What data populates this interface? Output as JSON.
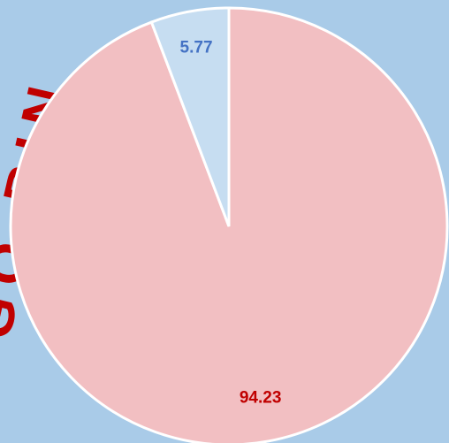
{
  "chart_data": {
    "type": "pie",
    "title": "GO BIN",
    "categories": [
      null,
      null
    ],
    "values": [
      94.23,
      5.77
    ],
    "colors": [
      "#f2bfc2",
      "#c6ddf1"
    ],
    "label_colors": [
      "#c00000",
      "#4472c4"
    ],
    "title_color": "#c00000",
    "background": "#a9cbe8"
  }
}
